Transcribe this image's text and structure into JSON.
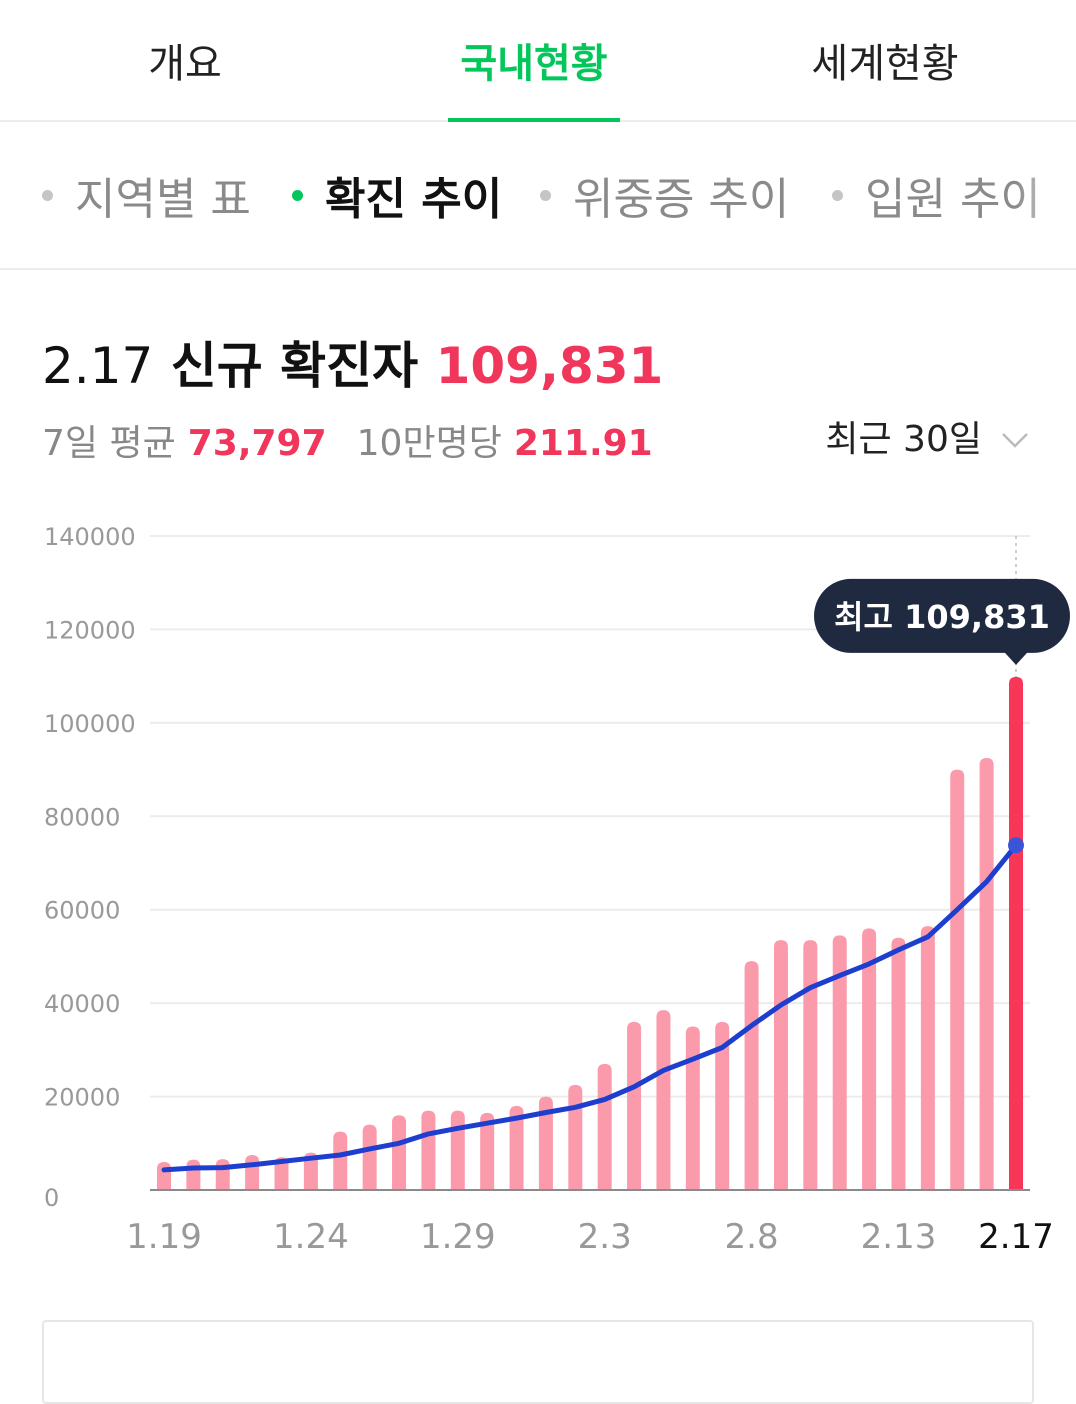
{
  "tabs": [
    {
      "label": "개요"
    },
    {
      "label": "국내현황"
    },
    {
      "label": "세계현황"
    }
  ],
  "subtabs": [
    {
      "label": "지역별 표"
    },
    {
      "label": "확진 추이"
    },
    {
      "label": "위중증 추이"
    },
    {
      "label": "입원 추이"
    }
  ],
  "summary": {
    "date": "2.17",
    "title": "신규 확진자",
    "value": "109,831",
    "avg_label": "7일 평균",
    "avg_value": "73,797",
    "per100k_label": "10만명당",
    "per100k_value": "211.91",
    "period_label": "최근 30일"
  },
  "colors": {
    "accent_green": "#03c75a",
    "bar": "#fb9aaa",
    "bar_highlight": "#f83658",
    "line": "#1e3ecf",
    "tooltip_bg": "#1f2940"
  },
  "chart_data": {
    "type": "bar",
    "x": [
      "1.19",
      "1.20",
      "1.21",
      "1.22",
      "1.23",
      "1.24",
      "1.25",
      "1.26",
      "1.27",
      "1.28",
      "1.29",
      "1.30",
      "1.31",
      "2.1",
      "2.2",
      "2.3",
      "2.4",
      "2.5",
      "2.6",
      "2.7",
      "2.8",
      "2.9",
      "2.10",
      "2.11",
      "2.12",
      "2.13",
      "2.14",
      "2.15",
      "2.16",
      "2.17"
    ],
    "x_tick_labels": [
      "1.19",
      "1.24",
      "1.29",
      "2.3",
      "2.8",
      "2.13",
      "2.17"
    ],
    "series": [
      {
        "values": [
          6000,
          6500,
          6600,
          7500,
          7000,
          8000,
          12500,
          14000,
          16000,
          17000,
          17000,
          16500,
          18000,
          20000,
          22500,
          27000,
          36000,
          38500,
          35000,
          36000,
          49000,
          53500,
          53500,
          54500,
          56000,
          54000,
          56500,
          90000,
          92500,
          109831
        ]
      },
      {
        "values": [
          4300,
          4700,
          4800,
          5400,
          6100,
          6800,
          7500,
          8800,
          10000,
          12000,
          13200,
          14300,
          15400,
          16600,
          17700,
          19400,
          22100,
          25600,
          28000,
          30500,
          35200,
          39600,
          43300,
          45900,
          48400,
          51400,
          54200,
          60000,
          66000,
          73797
        ]
      }
    ],
    "ylim": [
      0,
      140000
    ],
    "y_ticks": [
      "0",
      "20000",
      "40000",
      "60000",
      "80000",
      "100000",
      "120000",
      "140000"
    ],
    "highlight_label": "최고 109,831",
    "grid": true
  }
}
